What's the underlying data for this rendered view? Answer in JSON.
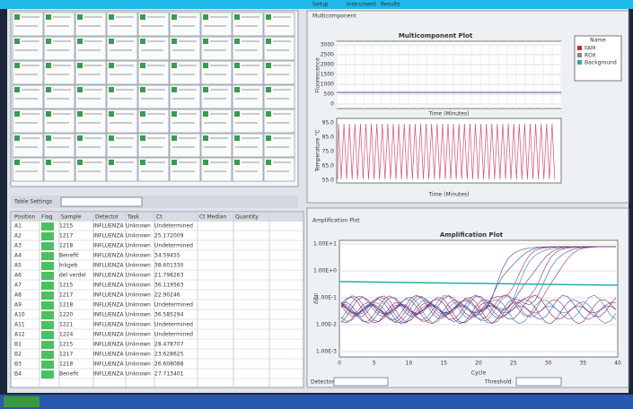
{
  "tabs": [
    "Setup",
    "Instrument",
    "Results"
  ],
  "multicomponent": {
    "panel_label": "Multicomponent",
    "title": "Multicomponent Plot",
    "y_label": "Fluorescence",
    "y_ticks": [
      "3000",
      "2500",
      "2000",
      "1500",
      "1000",
      "500",
      "0"
    ],
    "x_label": "Time (Minutes)",
    "temp_label": "Temperature °C",
    "temp_ticks": [
      "95.0",
      "85.0",
      "75.0",
      "65.0",
      "55.0"
    ],
    "legend_header": "Name",
    "legend": [
      "FAM",
      "ROX",
      "Background"
    ]
  },
  "amplification": {
    "panel_label": "Amplification Plot",
    "title": "Amplification Plot",
    "y_label": "ΔRn",
    "y_ticks": [
      "1.00E+1",
      "1.00E+0",
      "1.00E-1",
      "1.00E-2",
      "1.00E-3"
    ],
    "x_label": "Cycle",
    "x_ticks": [
      "0",
      "5",
      "10",
      "15",
      "20",
      "25",
      "30",
      "35",
      "40"
    ],
    "detector_label": "Detector",
    "threshold_label": "Threshold"
  },
  "table": {
    "settings_label": "Table Settings",
    "columns": [
      "Position",
      "Flag",
      "Sample",
      "Detector",
      "Task",
      "Ct",
      "Ct Median",
      "Quantity"
    ],
    "rows": [
      [
        "A1",
        "1215",
        "INFLUENZA",
        "Unknown",
        "Undetermined"
      ],
      [
        "A2",
        "1217",
        "INFLUENZA",
        "Unknown",
        "25.172009"
      ],
      [
        "A3",
        "1218",
        "INFLUENZA",
        "Unknown",
        "Undetermined"
      ],
      [
        "A4",
        "Benefit",
        "INFLUENZA",
        "Unknown",
        "34.59455"
      ],
      [
        "A5",
        "Inkgeb",
        "INFLUENZA",
        "Unknown",
        "38.601330"
      ],
      [
        "A6",
        "del verdel",
        "INFLUENZA",
        "Unknown",
        "21.798263"
      ],
      [
        "A7",
        "1215",
        "INFLUENZA",
        "Unknown",
        "36.119563"
      ],
      [
        "A8",
        "1217",
        "INFLUENZA",
        "Unknown",
        "22.90246"
      ],
      [
        "A9",
        "1218",
        "INFLUENZA",
        "Unknown",
        "Undetermined"
      ],
      [
        "A10",
        "1220",
        "INFLUENZA",
        "Unknown",
        "36.585294"
      ],
      [
        "A11",
        "1221",
        "INFLUENZA",
        "Unknown",
        "Undetermined"
      ],
      [
        "A12",
        "1224",
        "INFLUENZA",
        "Unknown",
        "Undetermined"
      ],
      [
        "B1",
        "1215",
        "INFLUENZA",
        "Unknown",
        "28.478707"
      ],
      [
        "B2",
        "1217",
        "INFLUENZA",
        "Unknown",
        "23.628625"
      ],
      [
        "B3",
        "1218",
        "INFLUENZA",
        "Unknown",
        "26.608088"
      ],
      [
        "B4",
        "Benefit",
        "INFLUENZA",
        "Unknown",
        "27.713401"
      ]
    ]
  }
}
